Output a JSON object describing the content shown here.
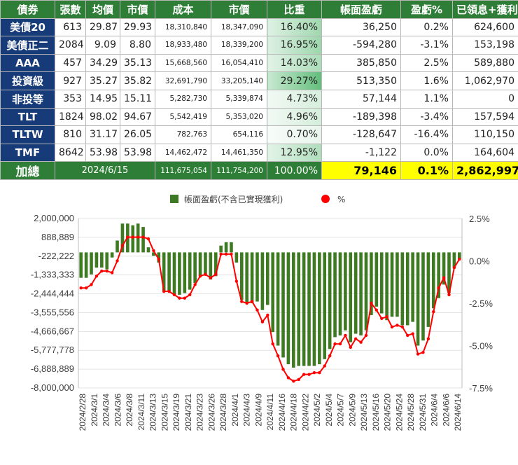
{
  "table": {
    "headers": [
      "債券",
      "張數",
      "均價",
      "市價",
      "成本",
      "市價",
      "比重",
      "帳面盈虧",
      "盈虧%",
      "已領息+獲利"
    ],
    "rows": [
      {
        "name": "美債20",
        "qty": "613",
        "avg": "29.87",
        "price": "29.93",
        "cost": "18,310,840",
        "value": "18,347,090",
        "weight": "16.40%",
        "pl": "36,250",
        "plpct": "0.2%",
        "income": "624,600"
      },
      {
        "name": "美債正二",
        "qty": "2084",
        "avg": "9.09",
        "price": "8.80",
        "cost": "18,933,480",
        "value": "18,339,200",
        "weight": "16.95%",
        "pl": "-594,280",
        "plpct": "-3.1%",
        "income": "153,198"
      },
      {
        "name": "AAA",
        "qty": "457",
        "avg": "34.29",
        "price": "35.13",
        "cost": "15,668,560",
        "value": "16,054,410",
        "weight": "14.03%",
        "pl": "385,850",
        "plpct": "2.5%",
        "income": "589,880"
      },
      {
        "name": "投資級",
        "qty": "927",
        "avg": "35.27",
        "price": "35.82",
        "cost": "32,691,790",
        "value": "33,205,140",
        "weight": "29.27%",
        "pl": "513,350",
        "plpct": "1.6%",
        "income": "1,062,970"
      },
      {
        "name": "非投等",
        "qty": "353",
        "avg": "14.95",
        "price": "15.11",
        "cost": "5,282,730",
        "value": "5,339,874",
        "weight": "4.73%",
        "pl": "57,144",
        "plpct": "1.1%",
        "income": "0"
      },
      {
        "name": "TLT",
        "qty": "1824",
        "avg": "98.02",
        "price": "94.67",
        "cost": "5,542,419",
        "value": "5,353,020",
        "weight": "4.96%",
        "pl": "-189,398",
        "plpct": "-3.4%",
        "income": "157,594"
      },
      {
        "name": "TLTW",
        "qty": "810",
        "avg": "31.17",
        "price": "26.05",
        "cost": "782,763",
        "value": "654,116",
        "weight": "0.70%",
        "pl": "-128,647",
        "plpct": "-16.4%",
        "income": "110,150"
      },
      {
        "name": "TMF",
        "qty": "8642",
        "avg": "53.98",
        "price": "53.98",
        "cost": "14,462,472",
        "value": "14,461,350",
        "weight": "12.95%",
        "pl": "-1,122",
        "plpct": "0.0%",
        "income": "164,604"
      }
    ],
    "total": {
      "label": "加總",
      "date": "2024/6/15",
      "cost": "111,675,054",
      "value": "111,754,200",
      "weight": "100.00%",
      "pl": "79,146",
      "plpct": "0.1%",
      "income": "2,862,997"
    },
    "weight_values": [
      16.4,
      16.95,
      14.03,
      29.27,
      4.73,
      4.96,
      0.7,
      12.95
    ],
    "colors": {
      "header_bg": "#2f7e37",
      "name_bg": "#173b78",
      "highlight": "#ffff00",
      "weight_bar": "#63be7b"
    }
  },
  "chart_data": {
    "type": "bar+line",
    "legend": [
      "帳面盈虧(不含已實現獲利)",
      "%"
    ],
    "legend_position": "top",
    "colors": {
      "bar": "#3d7a22",
      "line": "#ff0000"
    },
    "left_axis": {
      "ticks": [
        "2,000,000",
        "888,889",
        "-222,222",
        "-1,333,333",
        "-2,444,444",
        "-3,555,556",
        "-4,666,667",
        "-5,777,778",
        "-6,888,889",
        "-8,000,000"
      ],
      "min": -8000000,
      "max": 2000000
    },
    "right_axis": {
      "ticks": [
        "2.5%",
        "0.0%",
        "-2.5%",
        "-5.0%",
        "-7.5%"
      ],
      "min": -7.5,
      "max": 2.5
    },
    "x_tick_labels": [
      "2024/2/28",
      "2024/3/1",
      "2024/3/4",
      "2024/3/6",
      "2024/3/8",
      "2024/3/11",
      "2024/3/13",
      "2024/3/15",
      "2024/3/19",
      "2024/3/21",
      "2024/3/23",
      "2024/3/26",
      "2024/3/28",
      "2024/4/1",
      "2024/4/3",
      "2024/4/9",
      "2024/4/11",
      "2024/4/16",
      "2024/4/18",
      "2024/4/22",
      "2024/5/2",
      "2024/5/4",
      "2024/5/7",
      "2024/5/9",
      "2024/5/13",
      "2024/5/16",
      "2024/5/20",
      "2024/5/24",
      "2024/5/28",
      "2024/5/31",
      "2024/6/4",
      "2024/6/6",
      "2024/6/14"
    ],
    "bars": [
      -1500000,
      -1500000,
      -1300000,
      -900000,
      -900000,
      -1000000,
      -300000,
      700000,
      1700000,
      1700000,
      1600000,
      1700000,
      1500000,
      300000,
      -200000,
      -600000,
      -2300000,
      -2300000,
      -2500000,
      -2500000,
      -2400000,
      -2200000,
      -1800000,
      -1400000,
      -1300000,
      -1600000,
      -1400000,
      400000,
      600000,
      600000,
      -600000,
      -2800000,
      -3000000,
      -3000000,
      -2900000,
      -3400000,
      -3100000,
      -4700000,
      -5500000,
      -6200000,
      -6600000,
      -6800000,
      -6700000,
      -6700000,
      -6700000,
      -6700000,
      -6600000,
      -6300000,
      -5700000,
      -5000000,
      -4900000,
      -4600000,
      -5300000,
      -4800000,
      -4900000,
      -4600000,
      -3700000,
      -3200000,
      -3600000,
      -4000000,
      -3800000,
      -3800000,
      -4300000,
      -4300000,
      -4100000,
      -5500000,
      -5200000,
      -4400000,
      -3300000,
      -2700000,
      -1900000,
      -2400000,
      -900000,
      -400000
    ],
    "pct": [
      -1.6,
      -1.6,
      -1.4,
      -0.9,
      -0.6,
      -0.6,
      -0.7,
      0.0,
      0.9,
      1.4,
      1.4,
      1.4,
      1.4,
      1.3,
      0.6,
      0.1,
      -1.8,
      -1.8,
      -2.0,
      -2.2,
      -2.2,
      -2.0,
      -1.4,
      -0.9,
      -0.8,
      -1.0,
      -0.8,
      0.4,
      0.4,
      0.4,
      -1.2,
      -2.4,
      -2.5,
      -2.4,
      -2.9,
      -3.6,
      -3.2,
      -4.9,
      -5.6,
      -6.4,
      -6.9,
      -7.1,
      -7.0,
      -6.7,
      -6.7,
      -6.6,
      -6.6,
      -6.2,
      -5.6,
      -4.9,
      -4.9,
      -4.4,
      -5.1,
      -4.6,
      -4.8,
      -4.4,
      -2.5,
      -2.9,
      -3.4,
      -3.3,
      -3.9,
      -3.8,
      -3.9,
      -4.4,
      -4.3,
      -5.5,
      -5.4,
      -4.6,
      -3.0,
      -1.6,
      -1.0,
      -2.0,
      -0.4,
      0.1
    ]
  }
}
